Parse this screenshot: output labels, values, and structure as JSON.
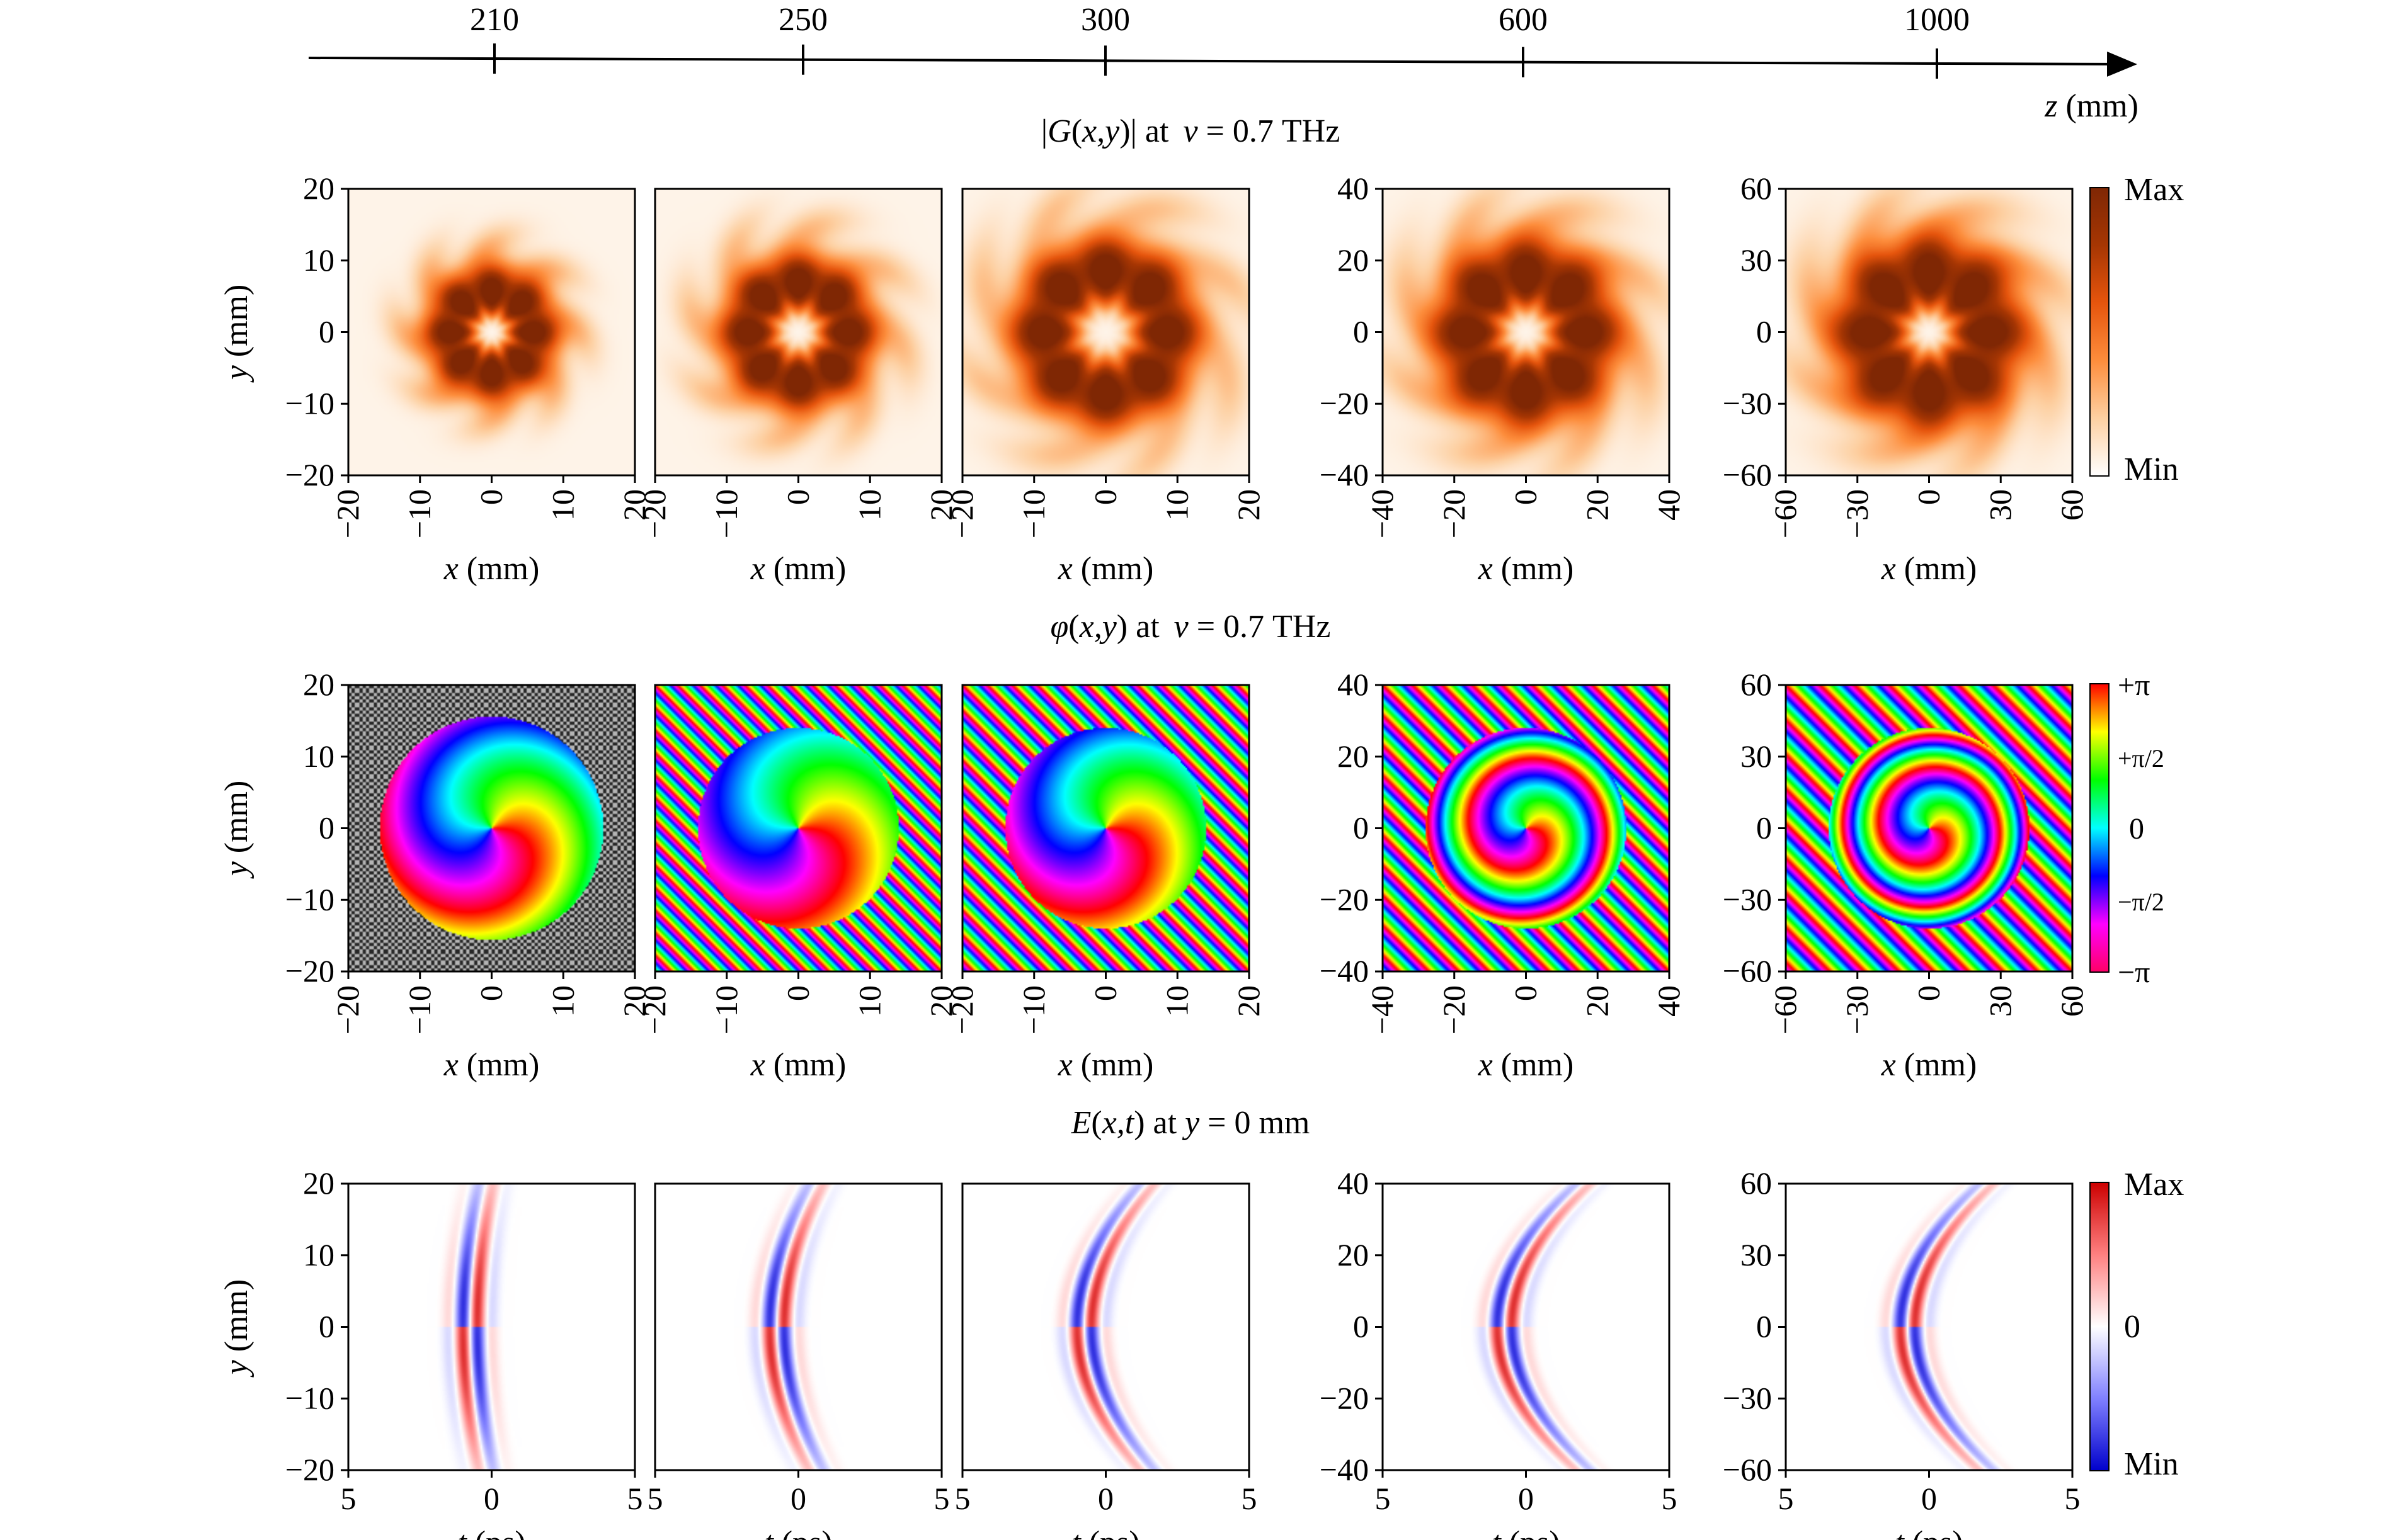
{
  "z_axis": {
    "label_var": "z",
    "label_unit": " (mm)",
    "ticks": [
      210,
      250,
      300,
      600,
      1000
    ]
  },
  "row_titles": {
    "amplitude": {
      "pre": "|",
      "var": "G",
      "mid": "(",
      "args": "x,y",
      "post": ")| at ",
      "nu": "ν",
      "value": " = 0.7 THz"
    },
    "phase": {
      "var": "φ",
      "mid": "(",
      "args": "x,y",
      "post": ") at ",
      "nu": "ν",
      "value": " = 0.7 THz"
    },
    "field": {
      "var": "E",
      "mid": "(",
      "args": "x,t",
      "post": ") at ",
      "yvar": "y",
      "value": " = 0 mm"
    }
  },
  "axis_labels": {
    "x": {
      "var": "x",
      "unit": " (mm)"
    },
    "y": {
      "var": "y",
      "unit": " (mm)"
    },
    "t": {
      "var": "t",
      "unit": " (ps)"
    }
  },
  "colorbars": {
    "amplitude": {
      "max": "Max",
      "min": "Min",
      "colors": [
        "#ffffff",
        "#fdd0a2",
        "#fd8d3c",
        "#e6550d",
        "#a63603",
        "#7f2704"
      ]
    },
    "phase": {
      "labels": [
        "+π",
        "+π/2",
        "0",
        "−π/2",
        "−π"
      ],
      "colors": [
        "#ff0000",
        "#ffff00",
        "#00ff00",
        "#00ffff",
        "#0000ff",
        "#ff00ff",
        "#ff0066"
      ]
    },
    "field": {
      "max": "Max",
      "mid": "0",
      "min": "Min",
      "colors": [
        "#cc0000",
        "#ff8080",
        "#ffffff",
        "#8080ff",
        "#0000cc"
      ]
    }
  },
  "chart_data": [
    {
      "type": "heatmap",
      "row": "amplitude",
      "title": "|G(x,y)| at ν = 0.7 THz",
      "panels": [
        {
          "z_mm": 210,
          "xlim": [
            -20,
            20
          ],
          "ylim": [
            -20,
            20
          ],
          "xticks": [
            -20,
            -10,
            0,
            10,
            20
          ],
          "yticks": [
            20,
            10,
            0,
            -10,
            -20
          ],
          "ring_radius_frac": 0.14,
          "ring_width_frac": 0.1
        },
        {
          "z_mm": 250,
          "xlim": [
            -20,
            20
          ],
          "ylim": [
            -20,
            20
          ],
          "xticks": [
            -20,
            -10,
            0,
            10,
            20
          ],
          "yticks": [],
          "ring_radius_frac": 0.17,
          "ring_width_frac": 0.11
        },
        {
          "z_mm": 300,
          "xlim": [
            -20,
            20
          ],
          "ylim": [
            -20,
            20
          ],
          "xticks": [
            -20,
            -10,
            0,
            10,
            20
          ],
          "yticks": [],
          "ring_radius_frac": 0.21,
          "ring_width_frac": 0.13
        },
        {
          "z_mm": 600,
          "xlim": [
            -40,
            40
          ],
          "ylim": [
            -40,
            40
          ],
          "xticks": [
            -40,
            -20,
            0,
            20,
            40
          ],
          "yticks": [
            40,
            20,
            0,
            -20,
            -40
          ],
          "ring_radius_frac": 0.2,
          "ring_width_frac": 0.14
        },
        {
          "z_mm": 1000,
          "xlim": [
            -60,
            60
          ],
          "ylim": [
            -60,
            60
          ],
          "xticks": [
            -60,
            -30,
            0,
            30,
            60
          ],
          "yticks": [
            60,
            30,
            0,
            -30,
            -60
          ],
          "ring_radius_frac": 0.2,
          "ring_width_frac": 0.15
        }
      ]
    },
    {
      "type": "heatmap",
      "row": "phase",
      "title": "φ(x,y) at ν = 0.7 THz",
      "panels": [
        {
          "z_mm": 210,
          "xlim": [
            -20,
            20
          ],
          "ylim": [
            -20,
            20
          ],
          "xticks": [
            -20,
            -10,
            0,
            10,
            20
          ],
          "yticks": [
            20,
            10,
            0,
            -10,
            -20
          ],
          "spiral_k": 5,
          "outer_k": 0
        },
        {
          "z_mm": 250,
          "xlim": [
            -20,
            20
          ],
          "ylim": [
            -20,
            20
          ],
          "xticks": [
            -20,
            -10,
            0,
            10,
            20
          ],
          "yticks": [],
          "spiral_k": 4,
          "outer_k": 40
        },
        {
          "z_mm": 300,
          "xlim": [
            -20,
            20
          ],
          "ylim": [
            -20,
            20
          ],
          "xticks": [
            -20,
            -10,
            0,
            10,
            20
          ],
          "yticks": [],
          "spiral_k": 5,
          "outer_k": 36
        },
        {
          "z_mm": 600,
          "xlim": [
            -40,
            40
          ],
          "ylim": [
            -40,
            40
          ],
          "xticks": [
            -40,
            -20,
            0,
            20,
            40
          ],
          "yticks": [
            40,
            20,
            0,
            -20,
            -40
          ],
          "spiral_k": 20,
          "outer_k": 30
        },
        {
          "z_mm": 1000,
          "xlim": [
            -60,
            60
          ],
          "ylim": [
            -60,
            60
          ],
          "xticks": [
            -60,
            -30,
            0,
            30,
            60
          ],
          "yticks": [
            60,
            30,
            0,
            -30,
            -60
          ],
          "spiral_k": 26,
          "outer_k": 26
        }
      ]
    },
    {
      "type": "heatmap",
      "row": "field",
      "title": "E(x,t) at y = 0 mm",
      "panels": [
        {
          "z_mm": 210,
          "tlim": [
            -5,
            5
          ],
          "ylim": [
            -20,
            20
          ],
          "xticks": [
            "5",
            "0",
            "5"
          ],
          "yticks": [
            20,
            10,
            0,
            -10,
            -20
          ],
          "curvature": 0.2
        },
        {
          "z_mm": 250,
          "tlim": [
            -5,
            5
          ],
          "ylim": [
            -20,
            20
          ],
          "xticks": [
            "5",
            "0",
            "5"
          ],
          "yticks": [],
          "curvature": 0.5
        },
        {
          "z_mm": 300,
          "tlim": [
            -5,
            5
          ],
          "ylim": [
            -20,
            20
          ],
          "xticks": [
            "5",
            "0",
            "5"
          ],
          "yticks": [],
          "curvature": 0.8
        },
        {
          "z_mm": 600,
          "tlim": [
            -5,
            5
          ],
          "ylim": [
            -40,
            40
          ],
          "xticks": [
            "5",
            "0",
            "5"
          ],
          "yticks": [
            40,
            20,
            0,
            -20,
            -40
          ],
          "curvature": 1.0
        },
        {
          "z_mm": 1000,
          "tlim": [
            -5,
            5
          ],
          "ylim": [
            -60,
            60
          ],
          "xticks": [
            "5",
            "0",
            "5"
          ],
          "yticks": [
            60,
            30,
            0,
            -30,
            -60
          ],
          "curvature": 1.0
        }
      ]
    }
  ]
}
